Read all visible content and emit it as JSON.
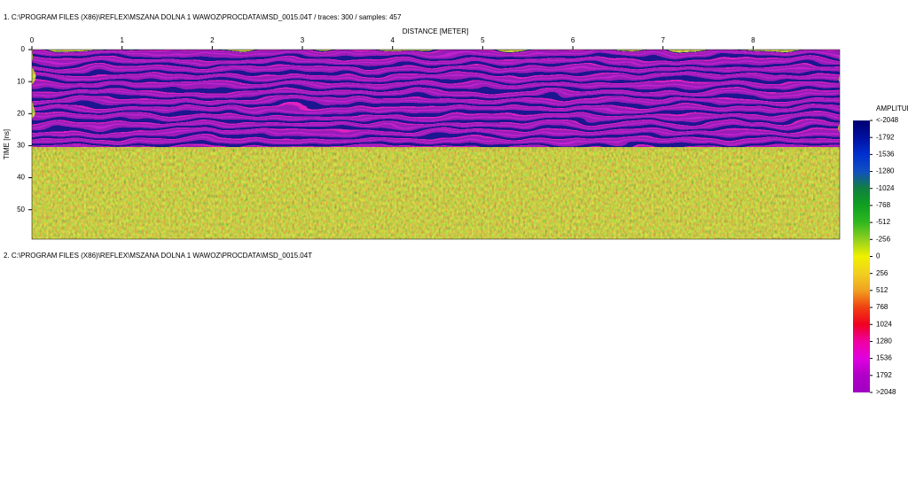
{
  "header_1": "1. C:\\PROGRAM FILES (X86)\\REFLEX\\MSZANA DOLNA 1 WAWOZ\\PROCDATA\\MSD_0015.04T / traces: 300 / samples: 457",
  "header_2": "2. C:\\PROGRAM FILES (X86)\\REFLEX\\MSZANA DOLNA 1 WAWOZ\\PROCDATA\\MSD_0015.04T",
  "chart_data": {
    "type": "radargram",
    "xlabel": "DISTANCE [METER]",
    "ylabel": "TIME [ns]",
    "xlim": [
      0,
      8.96
    ],
    "xticks": [
      0,
      1,
      2,
      3,
      4,
      5,
      6,
      7,
      8
    ],
    "ylim": [
      0,
      59.2
    ],
    "yticks": [
      0,
      10,
      20,
      30,
      40,
      50
    ],
    "colorbar": {
      "title": "AMPLITUDE",
      "lim": [
        -2048,
        2048
      ],
      "ticks": [
        {
          "value": -2048,
          "label": "<-2048"
        },
        -1792,
        -1536,
        -1280,
        -1024,
        -768,
        -512,
        -256,
        0,
        256,
        512,
        768,
        1024,
        1280,
        1536,
        1792,
        {
          "value": 2048,
          "label": ">2048"
        }
      ],
      "colors": [
        "#000070",
        "#0010a0",
        "#0030d0",
        "#1050c0",
        "#108040",
        "#10a020",
        "#30b820",
        "#90d020",
        "#f0f000",
        "#f0d020",
        "#f0a020",
        "#f04010",
        "#f00020",
        "#f000a0",
        "#e000e0",
        "#b000c8",
        "#a000c0"
      ]
    }
  }
}
